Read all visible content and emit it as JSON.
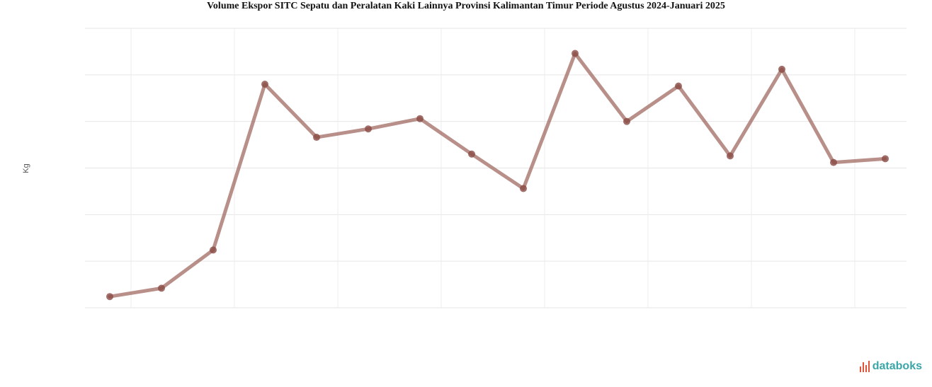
{
  "chart_data": {
    "type": "line",
    "title": "Volume Ekspor SITC Sepatu dan Peralatan Kaki Lainnya Provinsi Kalimantan Timur Periode Agustus 2024-Januari 2025",
    "xlabel": "",
    "ylabel": "Kg",
    "x_tick_labels": [
      "",
      "",
      "",
      "",
      "",
      "",
      "",
      ""
    ],
    "y_ticks": [
      50,
      100,
      150,
      200,
      250,
      300,
      350
    ],
    "y_tick_labels": [
      "",
      "",
      "",
      "",
      "",
      "",
      ""
    ],
    "ylim": [
      50,
      350
    ],
    "grid": true,
    "color": "#a06a62",
    "series": [
      {
        "values": [
          62,
          71,
          112,
          290,
          233,
          242,
          253,
          215,
          178,
          323,
          250,
          288,
          213,
          306,
          206,
          210
        ]
      }
    ]
  },
  "brand": {
    "label": "databoks",
    "icon": "databoks-logo-icon"
  }
}
